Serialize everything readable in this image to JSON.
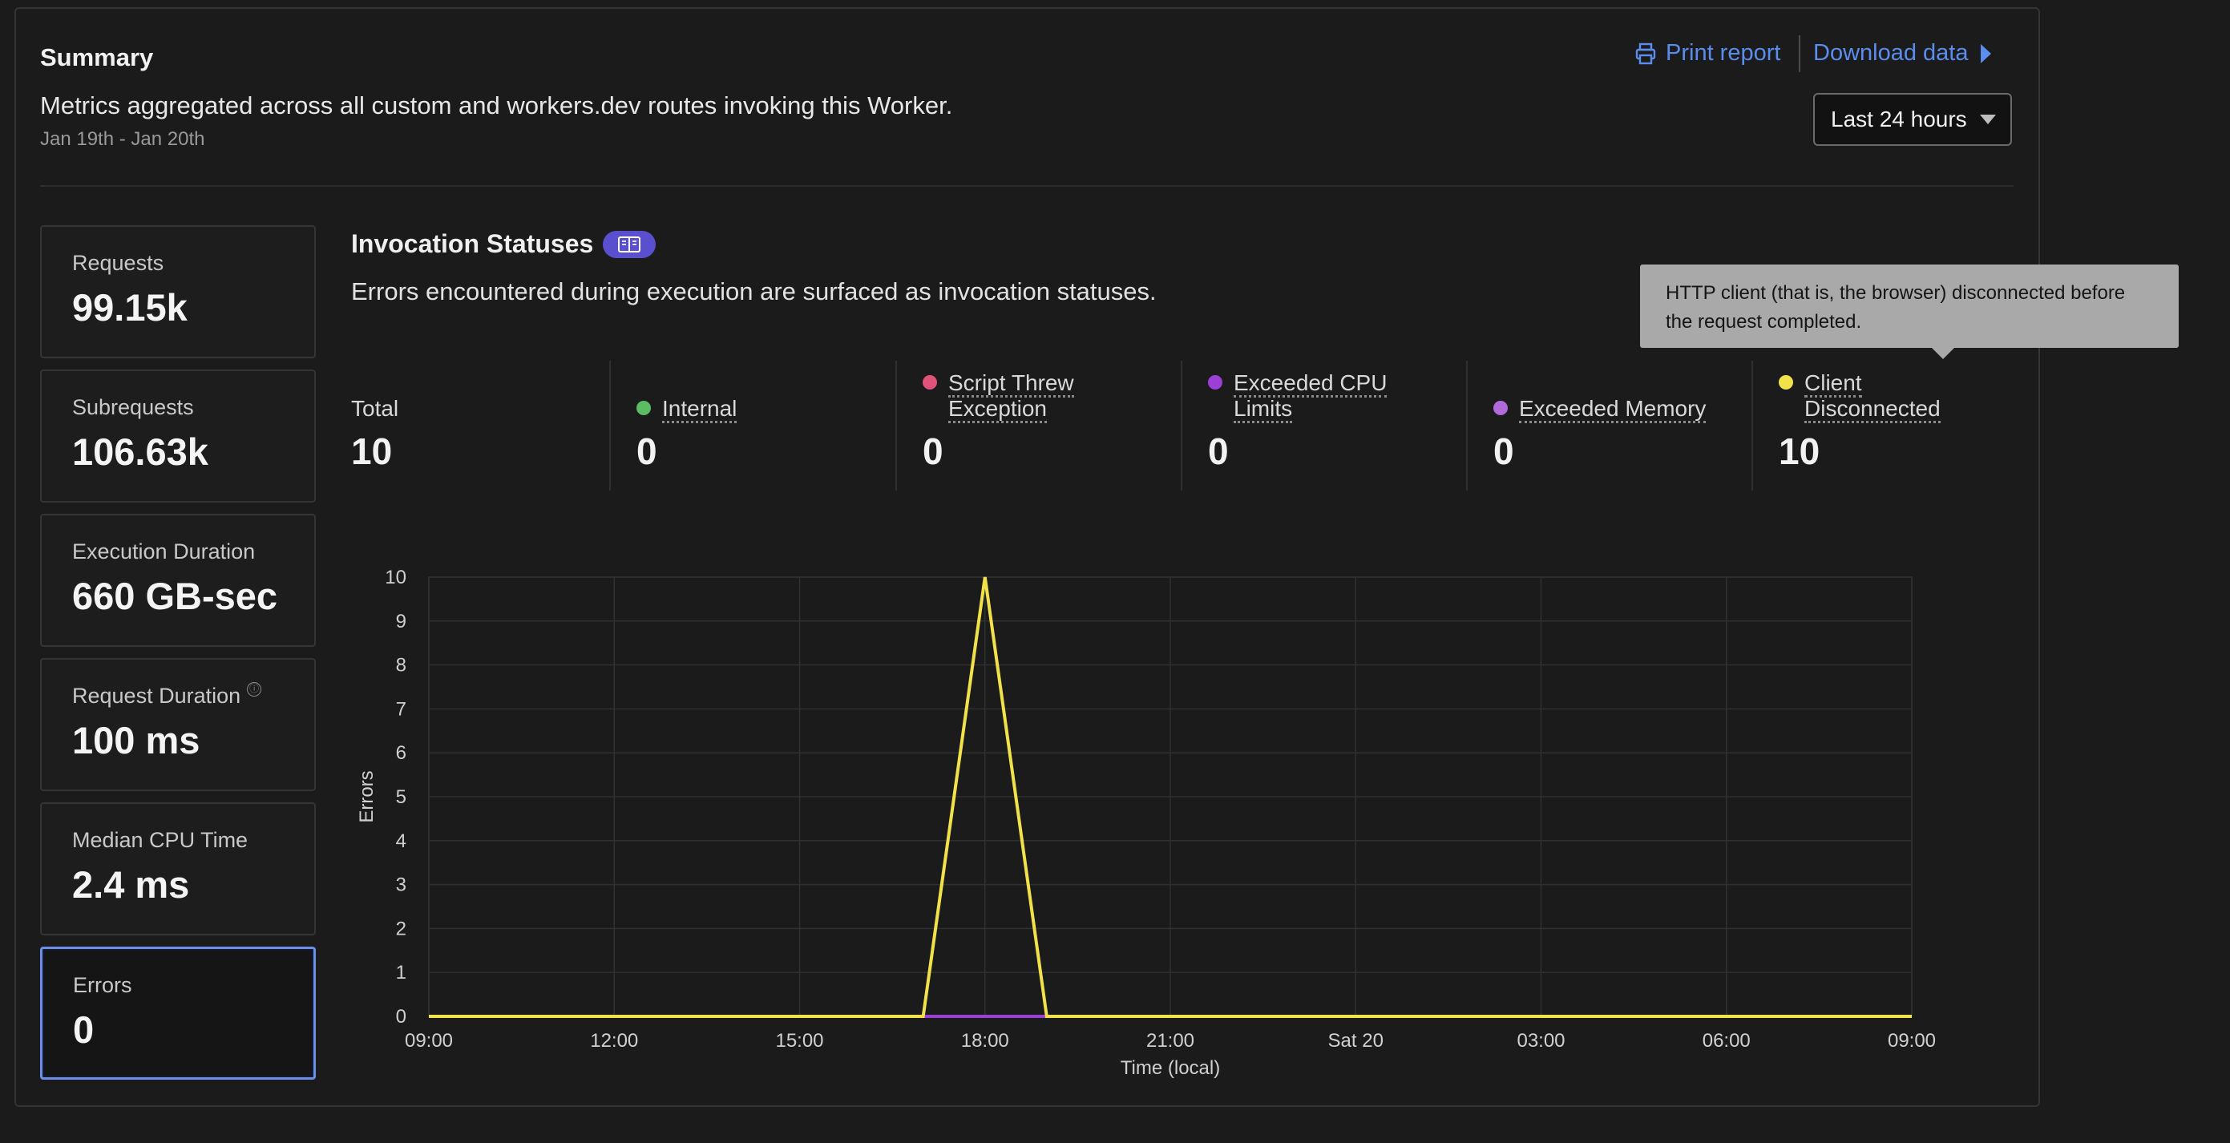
{
  "summary": {
    "title": "Summary",
    "description": "Metrics aggregated across all custom and workers.dev routes invoking this Worker.",
    "date_range": "Jan 19th - Jan 20th",
    "print_label": "Print report",
    "download_label": "Download data",
    "time_range": "Last 24 hours"
  },
  "metrics": [
    {
      "label": "Requests",
      "value": "99.15k"
    },
    {
      "label": "Subrequests",
      "value": "106.63k"
    },
    {
      "label": "Execution Duration",
      "value": "660 GB-sec"
    },
    {
      "label": "Request Duration",
      "value": "100 ms",
      "info": "ⓘ"
    },
    {
      "label": "Median CPU Time",
      "value": "2.4 ms"
    },
    {
      "label": "Errors",
      "value": "0",
      "selected": true
    }
  ],
  "invocation": {
    "title": "Invocation Statuses",
    "description": "Errors encountered during execution are surfaced as invocation statuses.",
    "tooltip": "HTTP client (that is, the browser) disconnected before the request completed.",
    "total_label": "Total",
    "total_value": "10",
    "statuses": [
      {
        "label_lines": [
          "Internal"
        ],
        "value": "0",
        "color": "#5dbb63"
      },
      {
        "label_lines": [
          "Script Threw",
          "Exception"
        ],
        "value": "0",
        "color": "#e0527a"
      },
      {
        "label_lines": [
          "Exceeded CPU",
          "Limits"
        ],
        "value": "0",
        "color": "#9b3fd6"
      },
      {
        "label_lines": [
          "Exceeded Memory"
        ],
        "value": "0",
        "color": "#b06ad9"
      },
      {
        "label_lines": [
          "Client",
          "Disconnected"
        ],
        "value": "10",
        "color": "#f2e24a"
      }
    ]
  },
  "chart_data": {
    "type": "line",
    "x": [
      "09:00",
      "10:00",
      "11:00",
      "12:00",
      "13:00",
      "14:00",
      "15:00",
      "16:00",
      "17:00",
      "18:00",
      "19:00",
      "20:00",
      "21:00",
      "22:00",
      "23:00",
      "Sat 20",
      "01:00",
      "02:00",
      "03:00",
      "04:00",
      "05:00",
      "06:00",
      "07:00",
      "08:00",
      "09:00"
    ],
    "xticks": [
      "09:00",
      "12:00",
      "15:00",
      "18:00",
      "21:00",
      "Sat 20",
      "03:00",
      "06:00",
      "09:00"
    ],
    "series": [
      {
        "name": "Client Disconnected",
        "color": "#f2e24a",
        "values": [
          0,
          0,
          0,
          0,
          0,
          0,
          0,
          0,
          0,
          10,
          0,
          0,
          0,
          0,
          0,
          0,
          0,
          0,
          0,
          0,
          0,
          0,
          0,
          0,
          0
        ]
      },
      {
        "name": "Exceeded CPU Limits",
        "color": "#9b3fd6",
        "values": [
          0,
          0,
          0,
          0,
          0,
          0,
          0,
          0,
          0,
          0,
          0,
          0,
          0,
          0,
          0,
          0,
          0,
          0,
          0,
          0,
          0,
          0,
          0,
          0,
          0
        ]
      }
    ],
    "xlabel": "Time (local)",
    "ylabel": "Errors",
    "ylim": [
      0,
      10
    ],
    "yticks": [
      0,
      1,
      2,
      3,
      4,
      5,
      6,
      7,
      8,
      9,
      10
    ],
    "grid": true
  }
}
